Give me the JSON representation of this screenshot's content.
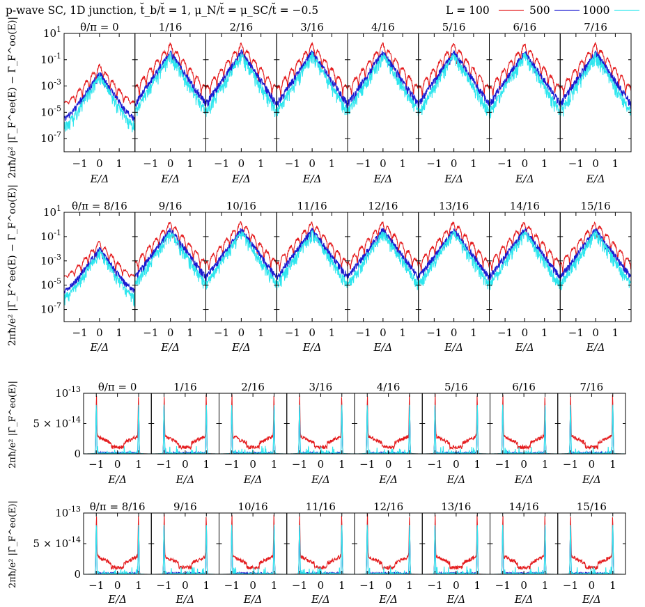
{
  "header": {
    "title": "p-wave SC, 1D junction, t̆_b/t̆ = 1, μ_N/t̆ = μ_SC/t̆ = −0.5"
  },
  "legend": {
    "prefix": "L = 100",
    "entries": [
      {
        "label": "100",
        "color": "#e41a1c"
      },
      {
        "label": "500",
        "color": "#1a1ad0"
      },
      {
        "label": "1000",
        "color": "#2ee6ee"
      }
    ]
  },
  "colors": {
    "L100": "#e41a1c",
    "L500": "#1a1ad0",
    "L1000": "#2ee6ee"
  },
  "chart_data": [
    {
      "type": "line",
      "block": "upper-row-1",
      "ylabel": "2πħ/e² |Γ̄_F^ee(E) − Γ̄_F^oo(E)|",
      "xlabel": "E/Δ",
      "yscale": "log",
      "ylim": [
        1e-08,
        10
      ],
      "y_ticks": [
        "10^1",
        "10^-1",
        "10^-3",
        "10^-5",
        "10^-7"
      ],
      "x_ticks": [
        "−1",
        "0",
        "1"
      ],
      "xlim": [
        -1.8,
        1.8
      ],
      "panel_titles": [
        "θ/π = 0",
        "1/16",
        "2/16",
        "3/16",
        "4/16",
        "5/16",
        "6/16",
        "7/16"
      ],
      "series_names": [
        "L = 100",
        "500",
        "1000"
      ]
    },
    {
      "type": "line",
      "block": "upper-row-2",
      "ylabel": "2πħ/e² |Γ̄_F^ee(E) − Γ̄_F^oo(E)|",
      "xlabel": "E/Δ",
      "yscale": "log",
      "ylim": [
        1e-08,
        10
      ],
      "y_ticks": [
        "10^1",
        "10^-1",
        "10^-3",
        "10^-5",
        "10^-7"
      ],
      "x_ticks": [
        "−1",
        "0",
        "1"
      ],
      "xlim": [
        -1.8,
        1.8
      ],
      "panel_titles": [
        "θ/π = 8/16",
        "9/16",
        "10/16",
        "11/16",
        "12/16",
        "13/16",
        "14/16",
        "15/16"
      ],
      "series_names": [
        "L = 100",
        "500",
        "1000"
      ]
    },
    {
      "type": "line",
      "block": "lower-row-1",
      "ylabel": "2πħ/e² |Γ̄_F^eo(E)|",
      "xlabel": "E/Δ",
      "yscale": "linear",
      "ylim": [
        0,
        1e-13
      ],
      "y_ticks": [
        "10^-13",
        "5 × 10^-14",
        "0"
      ],
      "x_ticks": [
        "−1",
        "0",
        "1"
      ],
      "xlim": [
        -1.6,
        1.6
      ],
      "panel_titles": [
        "θ/π = 0",
        "1/16",
        "2/16",
        "3/16",
        "4/16",
        "5/16",
        "6/16",
        "7/16"
      ],
      "series_names": [
        "L = 100",
        "500",
        "1000"
      ]
    },
    {
      "type": "line",
      "block": "lower-row-2",
      "ylabel": "2πħ/e² |Γ̄_F^eo(E)|",
      "xlabel": "E/Δ",
      "yscale": "linear",
      "ylim": [
        0,
        1e-13
      ],
      "y_ticks": [
        "10^-13",
        "5 × 10^-14",
        "0"
      ],
      "x_ticks": [
        "−1",
        "0",
        "1"
      ],
      "xlim": [
        -1.6,
        1.6
      ],
      "panel_titles": [
        "θ/π = 8/16",
        "9/16",
        "10/16",
        "11/16",
        "12/16",
        "13/16",
        "14/16",
        "15/16"
      ],
      "series_names": [
        "L = 100",
        "500",
        "1000"
      ]
    }
  ]
}
